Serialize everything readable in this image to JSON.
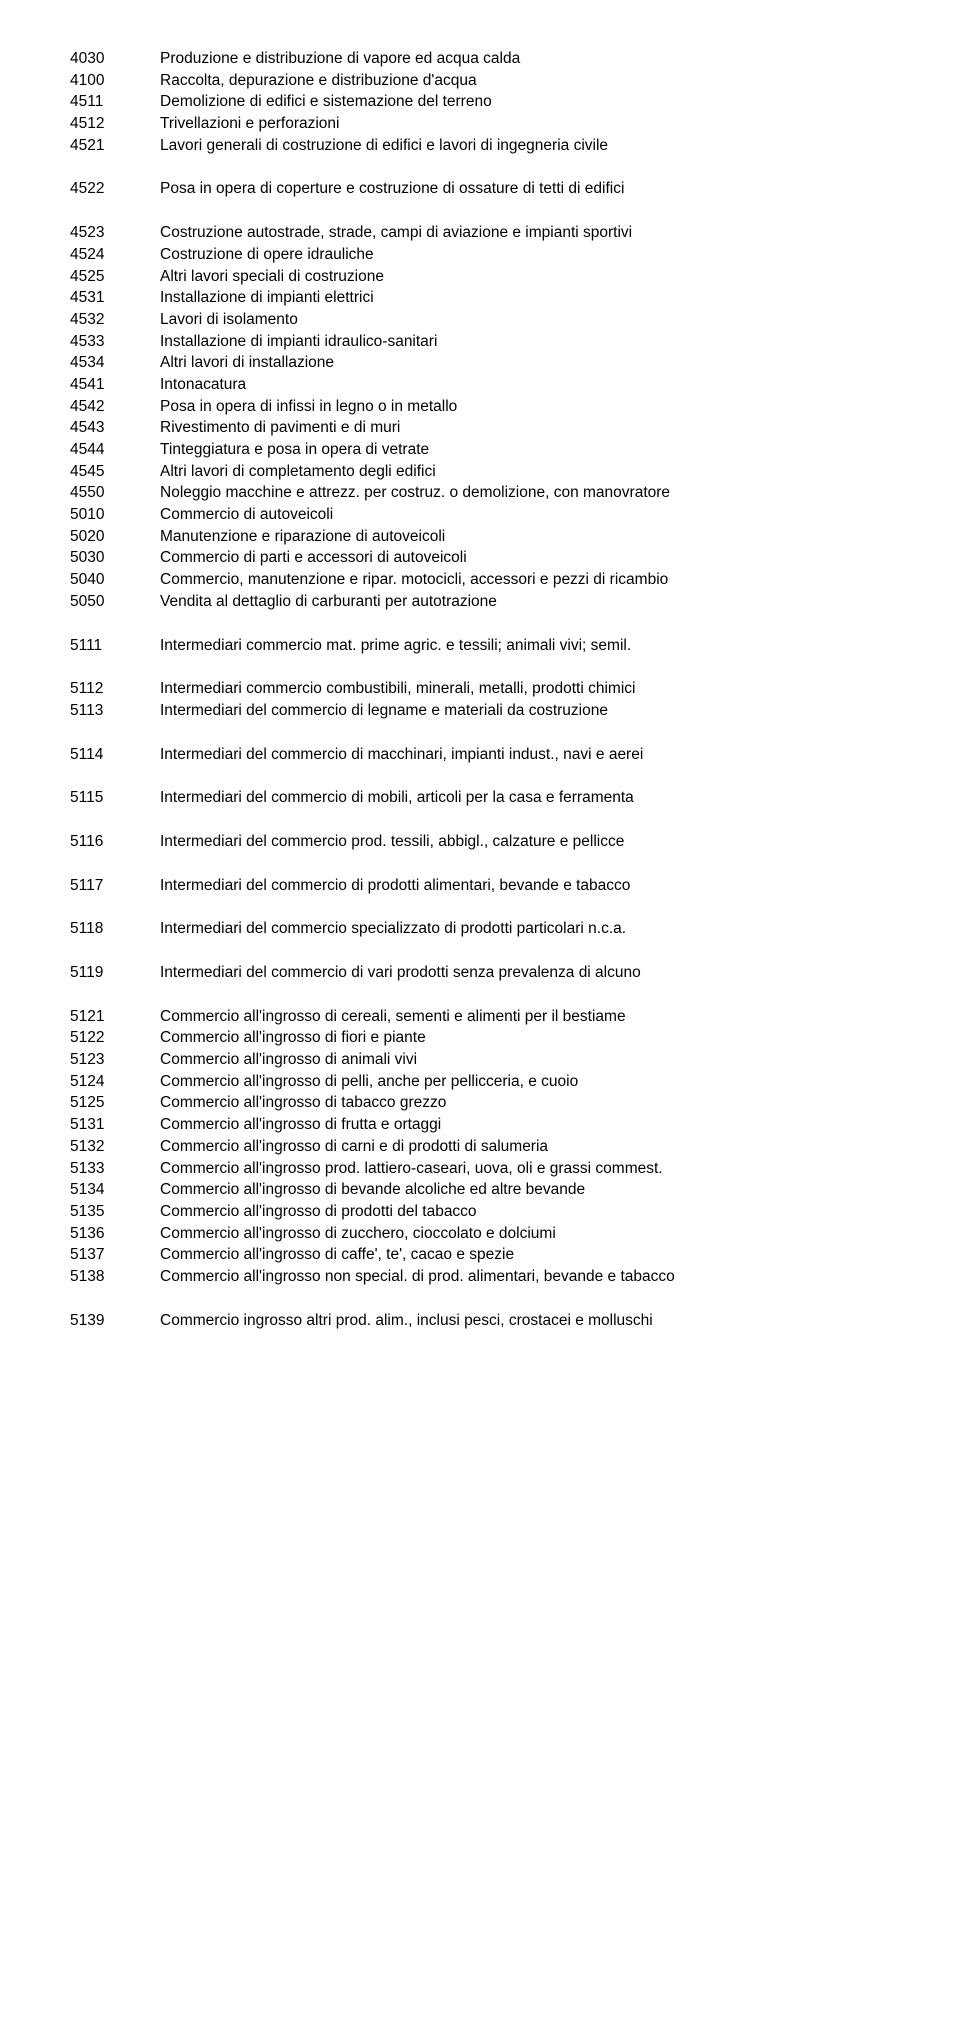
{
  "entries": [
    {
      "code": "4030",
      "desc": "Produzione e distribuzione di vapore ed acqua calda",
      "gap": false
    },
    {
      "code": "4100",
      "desc": "Raccolta, depurazione e distribuzione d'acqua",
      "gap": false
    },
    {
      "code": "4511",
      "desc": "Demolizione di edifici e sistemazione del terreno",
      "gap": false
    },
    {
      "code": "4512",
      "desc": "Trivellazioni e perforazioni",
      "gap": false
    },
    {
      "code": "4521",
      "desc": "Lavori generali di costruzione di edifici e lavori di ingegneria civile",
      "gap": true
    },
    {
      "code": "4522",
      "desc": "Posa in opera di coperture e costruzione di ossature di tetti di edifici",
      "gap": true
    },
    {
      "code": "4523",
      "desc": "Costruzione autostrade, strade, campi di aviazione e impianti sportivi",
      "gap": false
    },
    {
      "code": "4524",
      "desc": "Costruzione di opere idrauliche",
      "gap": false
    },
    {
      "code": "4525",
      "desc": "Altri lavori speciali di costruzione",
      "gap": false
    },
    {
      "code": "4531",
      "desc": "Installazione di impianti elettrici",
      "gap": false
    },
    {
      "code": "4532",
      "desc": "Lavori di isolamento",
      "gap": false
    },
    {
      "code": "4533",
      "desc": "Installazione di impianti idraulico-sanitari",
      "gap": false
    },
    {
      "code": "4534",
      "desc": "Altri lavori di installazione",
      "gap": false
    },
    {
      "code": "4541",
      "desc": "Intonacatura",
      "gap": false
    },
    {
      "code": "4542",
      "desc": "Posa in opera di infissi in legno o in metallo",
      "gap": false
    },
    {
      "code": "4543",
      "desc": "Rivestimento di pavimenti e di muri",
      "gap": false
    },
    {
      "code": "4544",
      "desc": "Tinteggiatura e posa in opera di vetrate",
      "gap": false
    },
    {
      "code": "4545",
      "desc": "Altri lavori di completamento degli edifici",
      "gap": false
    },
    {
      "code": "4550",
      "desc": "Noleggio macchine e attrezz. per costruz. o demolizione, con manovratore",
      "gap": false,
      "descFirst": true
    },
    {
      "code": "5010",
      "desc": "Commercio di autoveicoli",
      "gap": false
    },
    {
      "code": "5020",
      "desc": "Manutenzione e riparazione di autoveicoli",
      "gap": false
    },
    {
      "code": "5030",
      "desc": "Commercio di parti e accessori di autoveicoli",
      "gap": false
    },
    {
      "code": "5040",
      "desc": "Commercio, manutenzione e ripar. motocicli, accessori e pezzi di ricambio",
      "gap": false,
      "descFirst": true
    },
    {
      "code": "5050",
      "desc": "Vendita al dettaglio di carburanti per autotrazione",
      "gap": true
    },
    {
      "code": "5111",
      "desc": "Intermediari commercio mat. prime agric. e tessili; animali vivi; semil.",
      "gap": true
    },
    {
      "code": "5112",
      "desc": "Intermediari commercio combustibili, minerali, metalli, prodotti chimici",
      "gap": false
    },
    {
      "code": "5113",
      "desc": "Intermediari del commercio di legname e materiali da costruzione",
      "gap": true
    },
    {
      "code": "5114",
      "desc": "Intermediari del commercio di macchinari, impianti indust., navi e aerei",
      "gap": true
    },
    {
      "code": "5115",
      "desc": "Intermediari del commercio di mobili, articoli per la casa e ferramenta",
      "gap": true
    },
    {
      "code": "5116",
      "desc": "Intermediari del commercio prod. tessili, abbigl., calzature e pellicce",
      "gap": true
    },
    {
      "code": "5117",
      "desc": "Intermediari del commercio di prodotti alimentari, bevande e tabacco",
      "gap": true
    },
    {
      "code": "5118",
      "desc": "Intermediari del commercio specializzato di prodotti particolari n.c.a.",
      "gap": true
    },
    {
      "code": "5119",
      "desc": "Intermediari del commercio di vari prodotti senza prevalenza di alcuno",
      "gap": true
    },
    {
      "code": "5121",
      "desc": "Commercio all'ingrosso di cereali, sementi e alimenti per il bestiame",
      "gap": false
    },
    {
      "code": "5122",
      "desc": "Commercio all'ingrosso di fiori e piante",
      "gap": false
    },
    {
      "code": "5123",
      "desc": "Commercio all'ingrosso di animali vivi",
      "gap": false
    },
    {
      "code": "5124",
      "desc": "Commercio all'ingrosso di pelli, anche per pellicceria, e cuoio",
      "gap": false
    },
    {
      "code": "5125",
      "desc": "Commercio all'ingrosso di tabacco grezzo",
      "gap": false
    },
    {
      "code": "5131",
      "desc": "Commercio all'ingrosso di frutta e ortaggi",
      "gap": false
    },
    {
      "code": "5132",
      "desc": "Commercio all'ingrosso di carni e di prodotti di salumeria",
      "gap": false
    },
    {
      "code": "5133",
      "desc": "Commercio all'ingrosso prod. lattiero-caseari, uova, oli e grassi commest.",
      "gap": false,
      "descFirst": true
    },
    {
      "code": "5134",
      "desc": "Commercio all'ingrosso di bevande alcoliche ed altre bevande",
      "gap": false
    },
    {
      "code": "5135",
      "desc": "Commercio all'ingrosso di prodotti del tabacco",
      "gap": false
    },
    {
      "code": "5136",
      "desc": "Commercio all'ingrosso di zucchero, cioccolato e dolciumi",
      "gap": false
    },
    {
      "code": "5137",
      "desc": "Commercio all'ingrosso di caffe', te', cacao e spezie",
      "gap": false
    },
    {
      "code": "5138",
      "desc": "Commercio all'ingrosso non special. di prod. alimentari, bevande e tabacco",
      "gap": true,
      "descFirst": true
    },
    {
      "code": "5139",
      "desc": "Commercio ingrosso altri prod. alim., inclusi pesci, crostacei e molluschi",
      "gap": false
    }
  ]
}
